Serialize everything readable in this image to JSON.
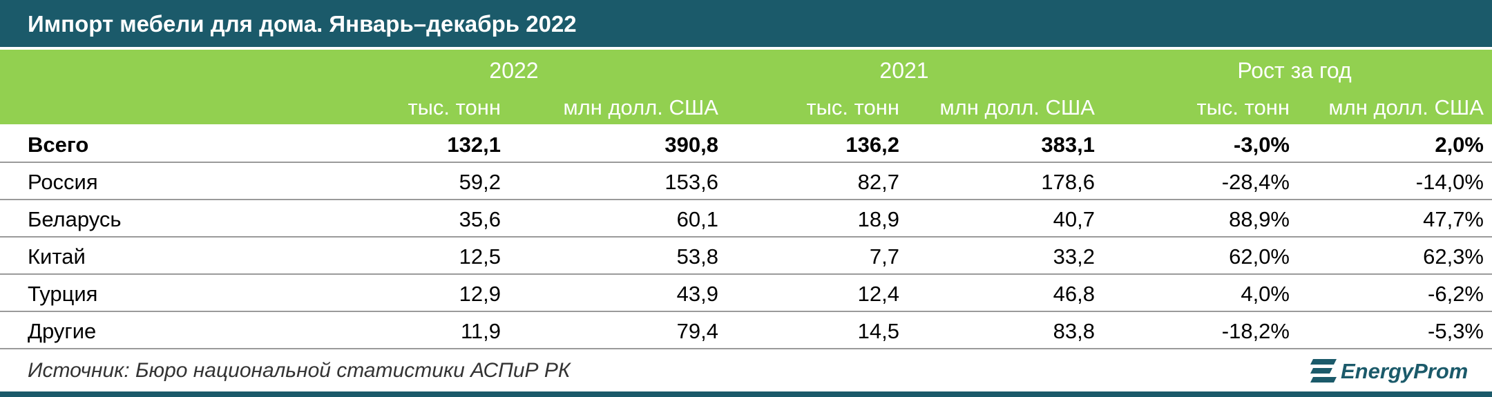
{
  "header": {
    "title": "Импорт мебели для дома. Январь–декабрь 2022"
  },
  "table": {
    "groups": [
      "2022",
      "2021",
      "Рост за год"
    ],
    "units": [
      "тыс. тонн",
      "млн долл. США",
      "тыс. тонн",
      "млн долл. США",
      "тыс. тонн",
      "млн долл. США"
    ],
    "rows": [
      [
        "Всего",
        "132,1",
        "390,8",
        "136,2",
        "383,1",
        "-3,0%",
        "2,0%"
      ],
      [
        "Россия",
        "59,2",
        "153,6",
        "82,7",
        "178,6",
        "-28,4%",
        "-14,0%"
      ],
      [
        "Беларусь",
        "35,6",
        "60,1",
        "18,9",
        "40,7",
        "88,9%",
        "47,7%"
      ],
      [
        "Китай",
        "12,5",
        "53,8",
        "7,7",
        "33,2",
        "62,0%",
        "62,3%"
      ],
      [
        "Турция",
        "12,9",
        "43,9",
        "12,4",
        "46,8",
        "4,0%",
        "-6,2%"
      ],
      [
        "Другие",
        "11,9",
        "79,4",
        "14,5",
        "83,8",
        "-18,2%",
        "-5,3%"
      ]
    ]
  },
  "footer": {
    "source": "Источник: Бюро национальной статистики АСПиР РК",
    "logo": "EnergyProm"
  }
}
